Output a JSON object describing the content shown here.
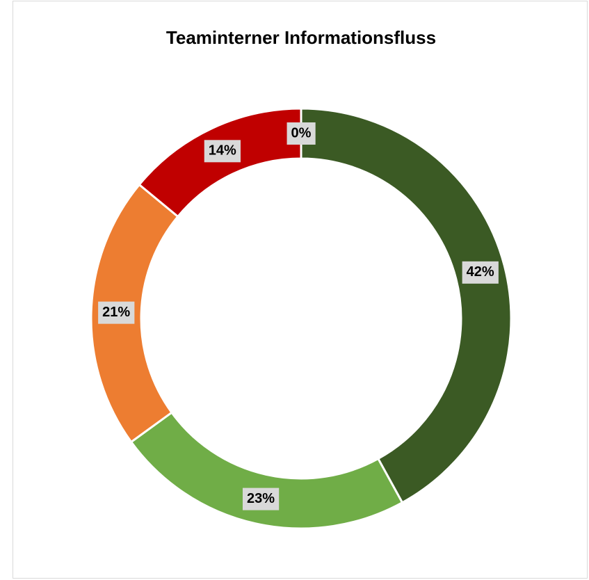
{
  "chart_data": {
    "type": "donut",
    "title": "Teaminterner Informationsfluss",
    "values": [
      42,
      23,
      21,
      14,
      0
    ],
    "value_labels": [
      "42%",
      "23%",
      "21%",
      "14%",
      "0%"
    ],
    "colors": [
      "#3b5a24",
      "#70ad47",
      "#ed7d31",
      "#c00000",
      "#7f7f7f"
    ]
  }
}
